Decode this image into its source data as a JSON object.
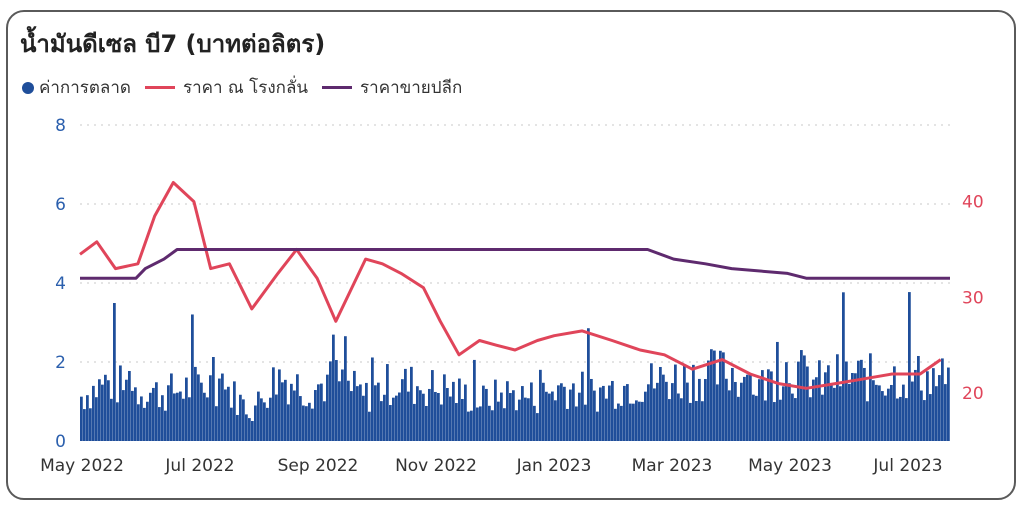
{
  "title": "น้ำมันดีเซล บี7 (บาทต่อลิตร)",
  "legend": [
    {
      "label": "ค่าการตลาด",
      "color": "#1f4e9a",
      "kind": "dot"
    },
    {
      "label": "ราคา ณ โรงกลั่น",
      "color": "#e0455a",
      "kind": "line"
    },
    {
      "label": "ราคาขายปลีก",
      "color": "#5e2a6e",
      "kind": "line"
    }
  ],
  "chart_data": {
    "type": "bar+line",
    "x_labels": [
      "May 2022",
      "Jul 2022",
      "Sep 2022",
      "Nov 2022",
      "Jan 2023",
      "Mar 2023",
      "May 2023",
      "Jul 2023"
    ],
    "x_range": [
      "2022-05-01",
      "2023-08-10"
    ],
    "left_axis": {
      "ticks": [
        "0",
        "2",
        "4",
        "6",
        "8"
      ],
      "ylim": [
        0,
        8
      ],
      "color": "#2b5fad"
    },
    "right_axis": {
      "ticks": [
        "20",
        "30",
        "40"
      ],
      "ylim": [
        15,
        48
      ],
      "color": "#e0455a"
    },
    "grid": "dotted horizontal",
    "series": [
      {
        "name": "ค่าการตลาด",
        "type": "bar",
        "axis": "left",
        "color": "#1f4e9a",
        "x": [
          "2022-05-01",
          "2022-05-15",
          "2022-06-01",
          "2022-06-15",
          "2022-07-01",
          "2022-07-15",
          "2022-08-01",
          "2022-08-15",
          "2022-09-01",
          "2022-09-15",
          "2022-10-01",
          "2022-10-15",
          "2022-11-01",
          "2022-11-15",
          "2022-12-01",
          "2022-12-15",
          "2023-01-01",
          "2023-01-15",
          "2023-02-01",
          "2023-02-15",
          "2023-03-01",
          "2023-03-15",
          "2023-04-01",
          "2023-04-15",
          "2023-05-01",
          "2023-05-15",
          "2023-06-01",
          "2023-06-15",
          "2023-07-01",
          "2023-07-15",
          "2023-08-01"
        ],
        "y": [
          1.2,
          1.6,
          1.4,
          1.3,
          1.5,
          1.6,
          0.8,
          1.8,
          1.4,
          1.7,
          1.2,
          1.6,
          1.5,
          1.4,
          1.1,
          1.3,
          1.2,
          1.5,
          1.3,
          1.5,
          1.6,
          1.7,
          1.8,
          1.9,
          1.5,
          2.0,
          1.6,
          1.8,
          1.7,
          1.8,
          1.7
        ]
      },
      {
        "name": "ราคา ณ โรงกลั่น",
        "type": "line",
        "axis": "right",
        "color": "#e0455a",
        "x": [
          "2022-05-01",
          "2022-05-10",
          "2022-05-20",
          "2022-06-01",
          "2022-06-10",
          "2022-06-20",
          "2022-07-01",
          "2022-07-10",
          "2022-07-20",
          "2022-08-01",
          "2022-08-15",
          "2022-08-25",
          "2022-09-05",
          "2022-09-15",
          "2022-10-01",
          "2022-10-10",
          "2022-10-20",
          "2022-11-01",
          "2022-11-10",
          "2022-11-20",
          "2022-12-01",
          "2022-12-10",
          "2022-12-20",
          "2023-01-01",
          "2023-01-10",
          "2023-01-25",
          "2023-02-10",
          "2023-02-25",
          "2023-03-10",
          "2023-03-25",
          "2023-04-10",
          "2023-04-25",
          "2023-05-10",
          "2023-05-25",
          "2023-06-10",
          "2023-06-25",
          "2023-07-10",
          "2023-07-25",
          "2023-08-05"
        ],
        "y": [
          34.5,
          35.8,
          33.0,
          33.5,
          38.5,
          42.0,
          40.0,
          33.0,
          33.5,
          28.8,
          32.5,
          35.0,
          32.0,
          27.5,
          34.0,
          33.5,
          32.5,
          31.0,
          27.5,
          24.0,
          25.5,
          25.0,
          24.5,
          25.5,
          26.0,
          26.5,
          25.5,
          24.5,
          24.0,
          22.5,
          23.5,
          22.0,
          21.0,
          20.5,
          21.0,
          21.5,
          22.0,
          22.0,
          23.5
        ]
      },
      {
        "name": "ราคาขายปลีก",
        "type": "line",
        "axis": "right",
        "color": "#5e2a6e",
        "x": [
          "2022-05-01",
          "2022-05-31",
          "2022-06-05",
          "2022-06-15",
          "2022-06-22",
          "2023-03-01",
          "2023-03-15",
          "2023-04-01",
          "2023-04-15",
          "2023-05-15",
          "2023-05-25",
          "2023-08-10"
        ],
        "y": [
          32.0,
          32.0,
          33.0,
          34.0,
          35.0,
          35.0,
          34.0,
          33.5,
          33.0,
          32.5,
          32.0,
          32.0
        ]
      }
    ]
  }
}
